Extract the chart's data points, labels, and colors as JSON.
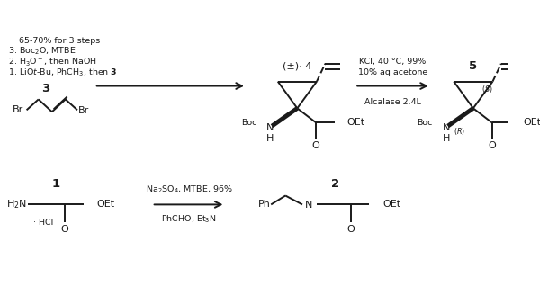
{
  "bg": "#ffffff",
  "fg": "#1a1a1a",
  "figsize": [
    6.0,
    3.18
  ],
  "dpi": 100,
  "lw": 1.4,
  "fs": 8.0,
  "fss": 6.8,
  "fsl": 9.5,
  "rxn1_above": "PhCHO, Et$_3$N",
  "rxn1_below": "Na$_2$SO$_4$, MTBE, 96%",
  "rxn2_above": "Alcalase 2.4L",
  "rxn2_below1": "10% aq acetone",
  "rxn2_below2": "KCl, 40 °C, 99%"
}
